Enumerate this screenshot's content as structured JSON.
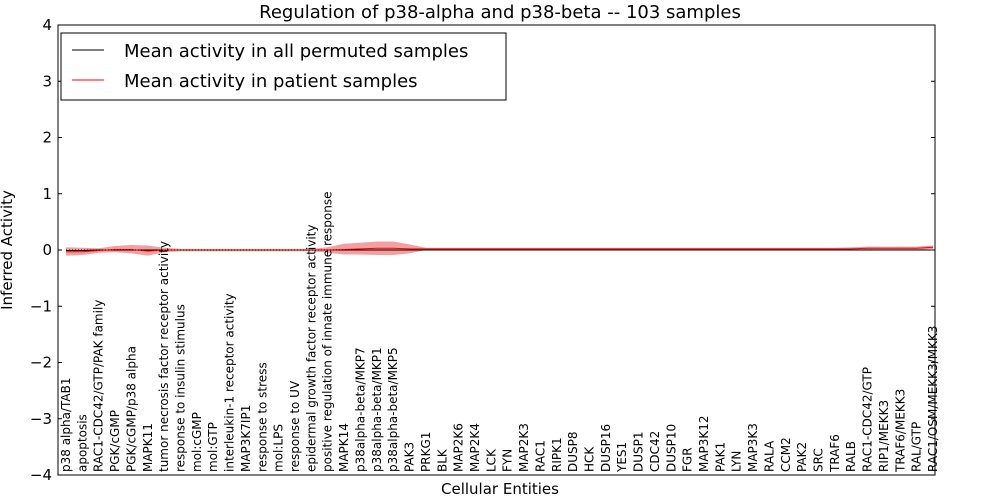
{
  "chart_data": {
    "type": "line",
    "title": "Regulation of p38-alpha and p38-beta -- 103 samples",
    "xlabel": "Cellular Entities",
    "ylabel": "Inferred Activity",
    "ylim": [
      -4,
      4
    ],
    "yticks": [
      "−4",
      "−3",
      "−2",
      "−1",
      "0",
      "1",
      "2",
      "3",
      "4"
    ],
    "legend_position": "top-left",
    "categories": [
      "p38 alpha/TAB1",
      "apoptosis",
      "RAC1-CDC42/GTP/PAK family",
      "PGK/cGMP",
      "PGK/cGMP/p38 alpha",
      "MAPK11",
      "tumor necrosis factor receptor activity",
      "response to insulin stimulus",
      "mol:cGMP",
      "mol:GTP",
      "interleukin-1 receptor activity",
      "MAP3K7IP1",
      "response to stress",
      "mol:LPS",
      "response to UV",
      "epidermal growth factor receptor activity",
      "positive regulation of innate immune response",
      "MAPK14",
      "p38alpha-beta/MKP7",
      "p38alpha-beta/MKP1",
      "p38alpha-beta/MKP5",
      "PAK3",
      "PRKG1",
      "BLK",
      "MAP2K6",
      "MAP2K4",
      "LCK",
      "FYN",
      "MAP2K3",
      "RAC1",
      "RIPK1",
      "DUSP8",
      "HCK",
      "DUSP16",
      "YES1",
      "DUSP1",
      "CDC42",
      "DUSP10",
      "FGR",
      "MAP3K12",
      "PAK1",
      "LYN",
      "MAP3K3",
      "RALA",
      "CCM2",
      "PAK2",
      "SRC",
      "TRAF6",
      "RALB",
      "RAC1-CDC42/GTP",
      "RIP1/MEKK3",
      "TRAF6/MEKK3",
      "RAL/GTP",
      "RAC1/OSM/MEKK3/MKK3"
    ],
    "series": [
      {
        "name": "Mean activity in all permuted samples",
        "color": "#000000",
        "values": [
          -0.01,
          -0.01,
          0.0,
          0.0,
          0.0,
          0.0,
          0.0,
          0.0,
          0.0,
          0.0,
          0.0,
          0.0,
          0.0,
          0.0,
          0.0,
          0.0,
          0.0,
          0.0,
          0.0,
          0.0,
          0.0,
          0.0,
          0.0,
          0.0,
          0.0,
          0.0,
          0.0,
          0.0,
          0.0,
          0.0,
          0.0,
          0.0,
          0.0,
          0.0,
          0.0,
          0.0,
          0.0,
          0.0,
          0.0,
          0.0,
          0.0,
          0.0,
          0.0,
          0.0,
          0.0,
          0.0,
          0.0,
          0.0,
          0.0,
          0.0,
          0.0,
          0.0,
          0.0,
          0.0
        ]
      },
      {
        "name": "Mean activity in patient samples",
        "color": "#ff0000",
        "band_color": "#f08080",
        "values": [
          -0.03,
          -0.03,
          -0.01,
          0.01,
          0.01,
          -0.02,
          0.0,
          0.0,
          0.0,
          0.0,
          0.0,
          0.0,
          0.0,
          0.0,
          0.0,
          0.0,
          0.0,
          0.01,
          0.02,
          0.03,
          0.03,
          0.02,
          0.02,
          0.02,
          0.02,
          0.02,
          0.02,
          0.02,
          0.02,
          0.02,
          0.02,
          0.02,
          0.02,
          0.02,
          0.02,
          0.02,
          0.02,
          0.02,
          0.02,
          0.02,
          0.02,
          0.02,
          0.02,
          0.02,
          0.02,
          0.02,
          0.02,
          0.02,
          0.02,
          0.03,
          0.03,
          0.03,
          0.03,
          0.05
        ],
        "lower": [
          -0.1,
          -0.09,
          -0.05,
          -0.04,
          -0.06,
          -0.1,
          -0.04,
          -0.02,
          -0.02,
          -0.02,
          -0.02,
          -0.02,
          -0.02,
          -0.02,
          -0.02,
          -0.02,
          -0.05,
          -0.08,
          -0.08,
          -0.09,
          -0.09,
          -0.06,
          0.0,
          0.0,
          0.0,
          0.0,
          0.0,
          0.0,
          0.0,
          0.0,
          0.0,
          0.0,
          0.0,
          0.0,
          0.0,
          0.0,
          0.0,
          0.0,
          0.0,
          0.0,
          0.0,
          0.0,
          0.0,
          0.0,
          0.0,
          0.0,
          0.0,
          0.0,
          0.0,
          0.0,
          0.0,
          0.0,
          0.0,
          0.02
        ],
        "upper": [
          0.05,
          0.04,
          0.03,
          0.07,
          0.09,
          0.08,
          0.04,
          0.02,
          0.02,
          0.02,
          0.02,
          0.02,
          0.02,
          0.02,
          0.02,
          0.02,
          0.05,
          0.11,
          0.13,
          0.15,
          0.15,
          0.1,
          0.04,
          0.04,
          0.04,
          0.04,
          0.04,
          0.04,
          0.04,
          0.04,
          0.04,
          0.04,
          0.04,
          0.04,
          0.04,
          0.04,
          0.04,
          0.04,
          0.04,
          0.04,
          0.04,
          0.04,
          0.04,
          0.04,
          0.04,
          0.04,
          0.04,
          0.04,
          0.05,
          0.06,
          0.06,
          0.06,
          0.06,
          0.08
        ]
      }
    ]
  }
}
